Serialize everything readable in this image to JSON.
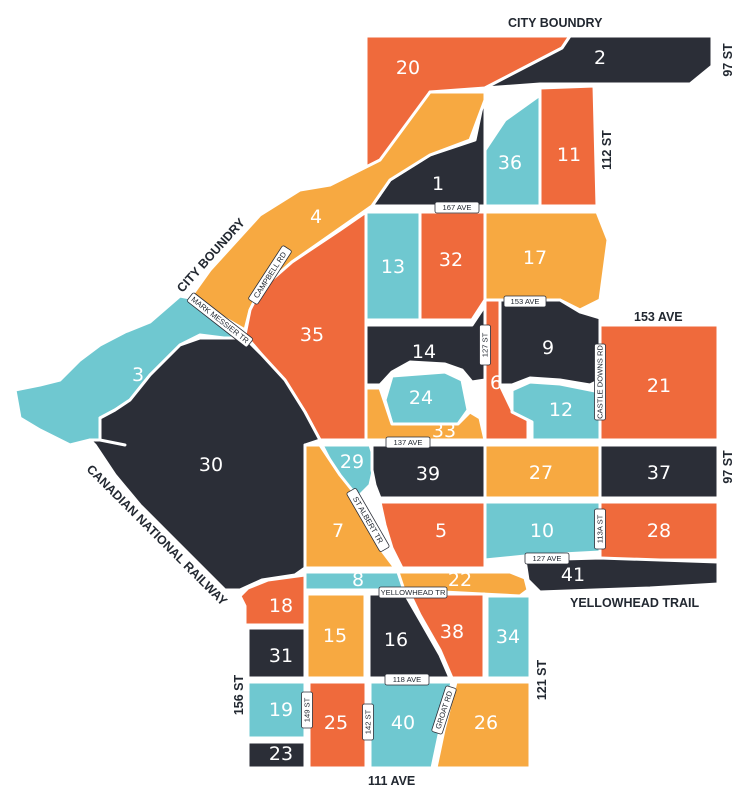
{
  "colors": {
    "dark": "#2b2e37",
    "orange": "#ef6a3c",
    "yellow": "#f7a941",
    "teal": "#6fc8d0"
  },
  "zones": [
    {
      "id": "1",
      "color": "dark"
    },
    {
      "id": "2",
      "color": "dark"
    },
    {
      "id": "3",
      "color": "teal"
    },
    {
      "id": "4",
      "color": "yellow"
    },
    {
      "id": "5",
      "color": "orange"
    },
    {
      "id": "6",
      "color": "orange"
    },
    {
      "id": "7",
      "color": "yellow"
    },
    {
      "id": "8",
      "color": "teal"
    },
    {
      "id": "9",
      "color": "dark"
    },
    {
      "id": "10",
      "color": "teal"
    },
    {
      "id": "11",
      "color": "orange"
    },
    {
      "id": "12",
      "color": "teal"
    },
    {
      "id": "13",
      "color": "teal"
    },
    {
      "id": "14",
      "color": "dark"
    },
    {
      "id": "15",
      "color": "yellow"
    },
    {
      "id": "16",
      "color": "dark"
    },
    {
      "id": "17",
      "color": "yellow"
    },
    {
      "id": "18",
      "color": "orange"
    },
    {
      "id": "19",
      "color": "teal"
    },
    {
      "id": "20",
      "color": "orange"
    },
    {
      "id": "21",
      "color": "orange"
    },
    {
      "id": "22",
      "color": "yellow"
    },
    {
      "id": "23",
      "color": "dark"
    },
    {
      "id": "24",
      "color": "teal"
    },
    {
      "id": "25",
      "color": "orange"
    },
    {
      "id": "26",
      "color": "yellow"
    },
    {
      "id": "27",
      "color": "yellow"
    },
    {
      "id": "28",
      "color": "orange"
    },
    {
      "id": "29",
      "color": "teal"
    },
    {
      "id": "30",
      "color": "dark"
    },
    {
      "id": "31",
      "color": "dark"
    },
    {
      "id": "32",
      "color": "orange"
    },
    {
      "id": "33",
      "color": "yellow"
    },
    {
      "id": "34",
      "color": "teal"
    },
    {
      "id": "35",
      "color": "orange"
    },
    {
      "id": "36",
      "color": "teal"
    },
    {
      "id": "37",
      "color": "dark"
    },
    {
      "id": "38",
      "color": "orange"
    },
    {
      "id": "39",
      "color": "dark"
    },
    {
      "id": "40",
      "color": "teal"
    },
    {
      "id": "41",
      "color": "dark"
    }
  ],
  "labels": {
    "city_boundary_top": "CITY BOUNDRY",
    "city_boundary_left": "CITY BOUNDRY",
    "st_97_top": "97 ST",
    "st_112": "112 ST",
    "ave_153": "153 AVE",
    "st_97_right": "97 ST",
    "yellowhead_trail": "YELLOWHEAD TRAIL",
    "railway": "CANADIAN NATIONAL RAILWAY",
    "st_156": "156 ST",
    "st_121": "121 ST",
    "ave_111": "111 AVE"
  },
  "roads": {
    "ave_167": "167 AVE",
    "campbell_rd": "CAMPBELL RD",
    "mark_messier": "MARK MESSIER TR",
    "ave_153_small": "153 AVE",
    "st_127": "127 ST",
    "castle_downs": "CASTLE DOWNS RD",
    "ave_137": "137 AVE",
    "st_albert": "ST ALBERT TR",
    "st_113a": "113A ST",
    "ave_127": "127 AVE",
    "yellowhead_tr": "YELLOWHEAD TR",
    "ave_118": "118 AVE",
    "groat_rd": "GROAT RD",
    "st_149": "149 ST",
    "st_142": "142 ST"
  }
}
